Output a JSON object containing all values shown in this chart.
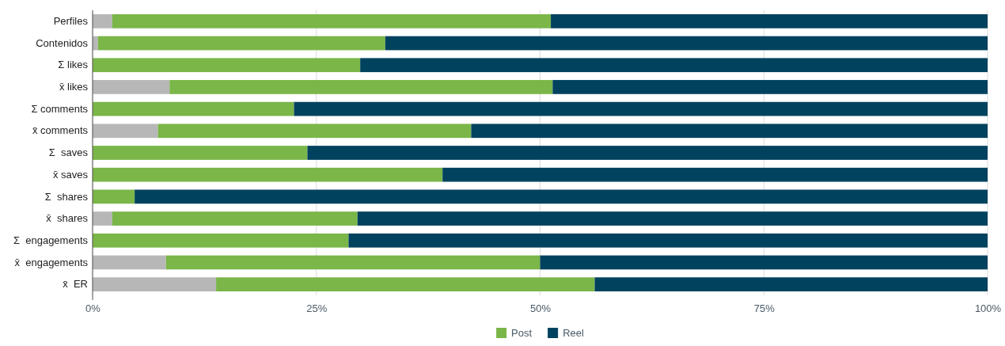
{
  "chart_data": {
    "type": "bar",
    "orientation": "horizontal",
    "stacked": true,
    "categories": [
      "Perfiles",
      "Contenidos",
      "Σ likes",
      "x̄ likes",
      "Σ comments",
      "x̄ comments",
      "Σ  saves",
      "x̄ saves",
      "Σ  shares",
      "x̄  shares",
      "Σ  engagements",
      "x̄  engagements",
      "x̄  ER"
    ],
    "series": [
      {
        "color": "#b7b7b7",
        "values": [
          2.2,
          0.6,
          0,
          8.6,
          0,
          7.3,
          0,
          0,
          0,
          2.2,
          0,
          8.2,
          13.8
        ]
      },
      {
        "name": "Post",
        "color": "#7ab648",
        "values": [
          49.0,
          32.1,
          29.9,
          42.8,
          22.5,
          35.0,
          24.0,
          39.1,
          4.7,
          27.4,
          28.6,
          41.8,
          42.3
        ]
      },
      {
        "name": "Reel",
        "color": "#01425e",
        "values": [
          48.8,
          67.3,
          70.1,
          48.6,
          77.5,
          57.7,
          76.0,
          60.9,
          95.3,
          70.4,
          71.4,
          50.0,
          43.9
        ]
      }
    ],
    "xlim": [
      0,
      100
    ],
    "xticks": [
      {
        "value": 0,
        "label": "0%"
      },
      {
        "value": 25,
        "label": "25%"
      },
      {
        "value": 50,
        "label": "50%"
      },
      {
        "value": 75,
        "label": "75%"
      },
      {
        "value": 100,
        "label": "100%"
      }
    ],
    "grid": "x",
    "legend": "bottom"
  }
}
